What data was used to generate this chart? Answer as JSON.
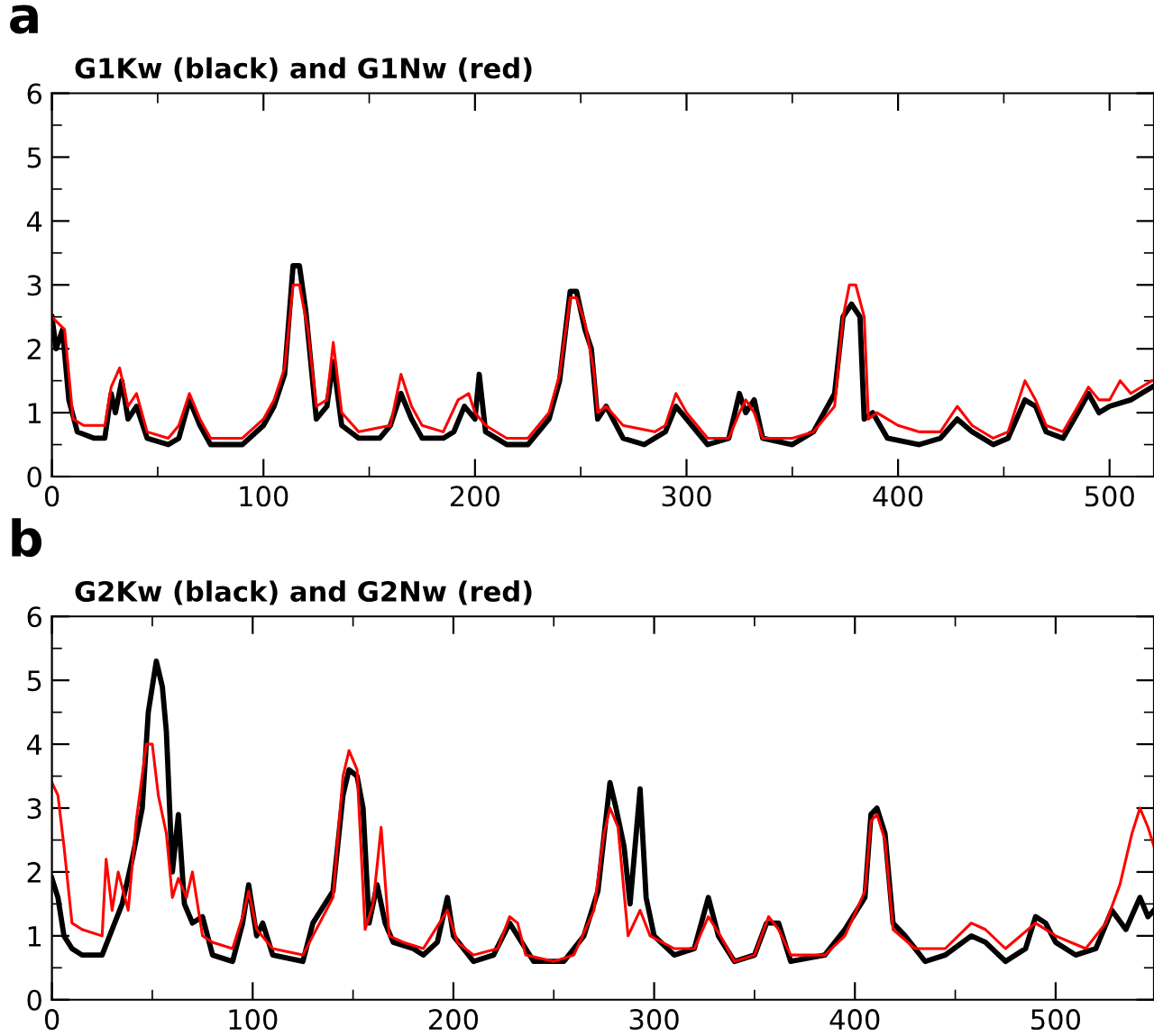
{
  "chart_data": [
    {
      "type": "line",
      "title": "G1Kw (black) and G1Nw (red)",
      "annotations": [
        "a"
      ],
      "xlim": [
        0,
        521
      ],
      "xticks": [
        0,
        100,
        200,
        300,
        400,
        500
      ],
      "ylim": [
        0,
        6
      ],
      "yticks": [
        0,
        1,
        2,
        3,
        4,
        5,
        6
      ],
      "grid": false,
      "marker": "none",
      "line_style": "solid",
      "series": [
        {
          "color": "#000000",
          "x": [
            0,
            2,
            5,
            8,
            12,
            20,
            25,
            28,
            30,
            33,
            36,
            40,
            45,
            55,
            60,
            65,
            70,
            75,
            90,
            100,
            105,
            110,
            114,
            117,
            120,
            125,
            130,
            133,
            137,
            145,
            155,
            160,
            165,
            170,
            175,
            185,
            190,
            195,
            200,
            202,
            205,
            215,
            225,
            235,
            240,
            245,
            248,
            252,
            255,
            258,
            262,
            270,
            280,
            290,
            295,
            300,
            310,
            320,
            325,
            328,
            332,
            336,
            350,
            360,
            370,
            374,
            378,
            382,
            384,
            388,
            395,
            410,
            420,
            428,
            435,
            445,
            452,
            460,
            465,
            470,
            478,
            485,
            490,
            495,
            500,
            510,
            520
          ],
          "values": [
            2.5,
            2.0,
            2.3,
            1.2,
            0.7,
            0.6,
            0.6,
            1.3,
            1.0,
            1.5,
            0.9,
            1.1,
            0.6,
            0.5,
            0.6,
            1.2,
            0.8,
            0.5,
            0.5,
            0.8,
            1.1,
            1.6,
            3.3,
            3.3,
            2.6,
            0.9,
            1.1,
            1.8,
            0.8,
            0.6,
            0.6,
            0.8,
            1.3,
            0.9,
            0.6,
            0.6,
            0.7,
            1.1,
            0.9,
            1.6,
            0.7,
            0.5,
            0.5,
            0.9,
            1.5,
            2.9,
            2.9,
            2.3,
            2.0,
            0.9,
            1.1,
            0.6,
            0.5,
            0.7,
            1.1,
            0.9,
            0.5,
            0.6,
            1.3,
            1.0,
            1.2,
            0.6,
            0.5,
            0.7,
            1.3,
            2.5,
            2.7,
            2.5,
            0.9,
            1.0,
            0.6,
            0.5,
            0.6,
            0.9,
            0.7,
            0.5,
            0.6,
            1.2,
            1.1,
            0.7,
            0.6,
            1.0,
            1.3,
            1.0,
            1.1,
            1.2,
            1.4
          ]
        },
        {
          "color": "#ff0000",
          "x": [
            0,
            3,
            6,
            10,
            15,
            25,
            28,
            32,
            36,
            40,
            45,
            55,
            60,
            65,
            70,
            75,
            90,
            100,
            105,
            110,
            114,
            117,
            121,
            125,
            130,
            133,
            137,
            145,
            160,
            165,
            170,
            175,
            185,
            192,
            197,
            200,
            205,
            215,
            225,
            235,
            240,
            245,
            248,
            252,
            256,
            258,
            262,
            270,
            285,
            290,
            295,
            300,
            310,
            320,
            325,
            328,
            332,
            336,
            350,
            360,
            370,
            374,
            377,
            380,
            384,
            386,
            390,
            400,
            410,
            420,
            428,
            435,
            445,
            452,
            460,
            465,
            470,
            478,
            485,
            490,
            495,
            500,
            505,
            510,
            520
          ],
          "values": [
            2.5,
            2.4,
            2.3,
            0.9,
            0.8,
            0.8,
            1.4,
            1.7,
            1.1,
            1.3,
            0.7,
            0.6,
            0.8,
            1.3,
            0.9,
            0.6,
            0.6,
            0.9,
            1.2,
            1.7,
            3.0,
            3.0,
            2.3,
            1.1,
            1.2,
            2.1,
            1.0,
            0.7,
            0.8,
            1.6,
            1.1,
            0.8,
            0.7,
            1.2,
            1.3,
            1.0,
            0.8,
            0.6,
            0.6,
            1.0,
            1.6,
            2.8,
            2.8,
            2.4,
            1.7,
            1.0,
            1.1,
            0.8,
            0.7,
            0.8,
            1.3,
            1.0,
            0.6,
            0.6,
            1.0,
            1.2,
            1.0,
            0.6,
            0.6,
            0.7,
            1.1,
            2.5,
            3.0,
            3.0,
            2.5,
            0.9,
            1.0,
            0.8,
            0.7,
            0.7,
            1.1,
            0.8,
            0.6,
            0.7,
            1.5,
            1.2,
            0.8,
            0.7,
            1.1,
            1.4,
            1.2,
            1.2,
            1.5,
            1.3,
            1.5
          ]
        }
      ]
    },
    {
      "type": "line",
      "title": "G2Kw (black) and G2Nw (red)",
      "annotations": [
        "b"
      ],
      "xlim": [
        0,
        549
      ],
      "xticks": [
        0,
        100,
        200,
        300,
        400,
        500
      ],
      "ylim": [
        0,
        6
      ],
      "yticks": [
        0,
        1,
        2,
        3,
        4,
        5,
        6
      ],
      "grid": false,
      "marker": "none",
      "line_style": "solid",
      "series": [
        {
          "color": "#000000",
          "x": [
            0,
            3,
            6,
            10,
            15,
            25,
            30,
            35,
            40,
            45,
            48,
            52,
            55,
            57,
            60,
            63,
            66,
            70,
            75,
            80,
            90,
            95,
            98,
            102,
            105,
            110,
            125,
            130,
            140,
            145,
            148,
            152,
            155,
            158,
            162,
            166,
            170,
            180,
            185,
            192,
            197,
            200,
            210,
            220,
            228,
            232,
            240,
            255,
            265,
            272,
            278,
            281,
            285,
            288,
            293,
            296,
            300,
            310,
            320,
            327,
            332,
            340,
            350,
            356,
            362,
            368,
            385,
            395,
            405,
            408,
            411,
            415,
            419,
            425,
            435,
            445,
            458,
            465,
            475,
            485,
            490,
            495,
            500,
            510,
            520,
            528,
            535,
            542,
            546,
            549
          ],
          "values": [
            1.9,
            1.6,
            1.0,
            0.8,
            0.7,
            0.7,
            1.1,
            1.5,
            2.2,
            3.0,
            4.5,
            5.3,
            4.9,
            4.2,
            2.0,
            2.9,
            1.5,
            1.2,
            1.3,
            0.7,
            0.6,
            1.2,
            1.8,
            1.0,
            1.2,
            0.7,
            0.6,
            1.2,
            1.7,
            3.2,
            3.6,
            3.5,
            3.0,
            1.2,
            1.8,
            1.2,
            0.9,
            0.8,
            0.7,
            0.9,
            1.6,
            1.0,
            0.6,
            0.7,
            1.2,
            1.0,
            0.6,
            0.6,
            1.0,
            1.7,
            3.4,
            3.0,
            2.4,
            1.5,
            3.3,
            1.6,
            1.0,
            0.7,
            0.8,
            1.6,
            1.0,
            0.6,
            0.7,
            1.2,
            1.2,
            0.6,
            0.7,
            1.1,
            1.6,
            2.9,
            3.0,
            2.6,
            1.2,
            1.0,
            0.6,
            0.7,
            1.0,
            0.9,
            0.6,
            0.8,
            1.3,
            1.2,
            0.9,
            0.7,
            0.8,
            1.4,
            1.1,
            1.6,
            1.3,
            1.4
          ]
        },
        {
          "color": "#ff0000",
          "x": [
            0,
            3,
            6,
            10,
            15,
            25,
            27,
            30,
            33,
            38,
            42,
            47,
            50,
            53,
            57,
            60,
            63,
            67,
            70,
            75,
            80,
            90,
            95,
            98,
            102,
            110,
            125,
            130,
            140,
            145,
            148,
            152,
            156,
            160,
            164,
            168,
            175,
            185,
            193,
            197,
            202,
            210,
            222,
            228,
            232,
            236,
            250,
            260,
            270,
            275,
            278,
            282,
            287,
            293,
            298,
            310,
            320,
            327,
            333,
            340,
            350,
            357,
            362,
            368,
            385,
            395,
            405,
            408,
            411,
            415,
            419,
            430,
            445,
            458,
            465,
            475,
            490,
            500,
            515,
            525,
            532,
            538,
            542,
            546,
            549
          ],
          "values": [
            3.4,
            3.2,
            2.4,
            1.2,
            1.1,
            1.0,
            2.2,
            1.4,
            2.0,
            1.4,
            2.8,
            4.0,
            4.0,
            3.2,
            2.6,
            1.6,
            1.9,
            1.6,
            2.0,
            1.0,
            0.9,
            0.8,
            1.3,
            1.7,
            1.1,
            0.8,
            0.7,
            1.0,
            1.6,
            3.5,
            3.9,
            3.6,
            1.1,
            1.5,
            2.7,
            1.0,
            0.9,
            0.8,
            1.2,
            1.4,
            0.9,
            0.7,
            0.8,
            1.3,
            1.2,
            0.7,
            0.6,
            0.7,
            1.4,
            2.6,
            3.0,
            2.7,
            1.0,
            1.4,
            1.0,
            0.8,
            0.8,
            1.3,
            1.0,
            0.6,
            0.7,
            1.3,
            1.1,
            0.7,
            0.7,
            1.0,
            1.7,
            2.8,
            2.9,
            2.5,
            1.1,
            0.8,
            0.8,
            1.2,
            1.1,
            0.8,
            1.2,
            1.0,
            0.8,
            1.2,
            1.8,
            2.6,
            3.0,
            2.7,
            2.4
          ]
        }
      ]
    }
  ]
}
